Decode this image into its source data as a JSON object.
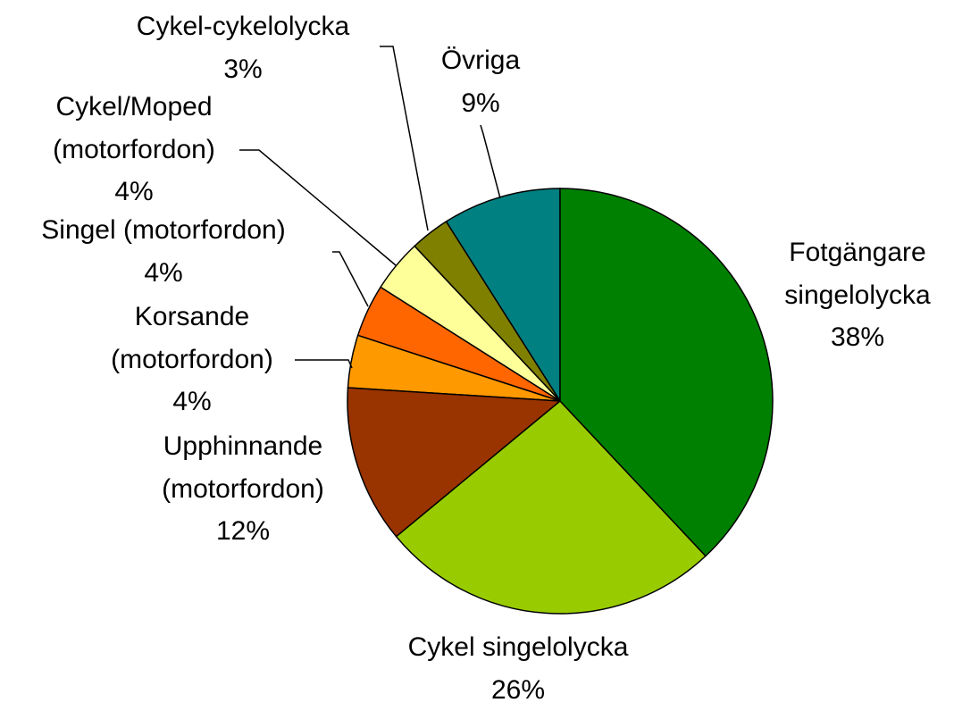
{
  "chart_data": {
    "type": "pie",
    "categories": [
      "Fotgängare singelolycka",
      "Cykel singelolycka",
      "Upphinnande (motorfordon)",
      "Korsande (motorfordon)",
      "Singel (motorfordon)",
      "Cykel/Moped (motorfordon)",
      "Cykel-cykelolycka",
      "Övriga"
    ],
    "values": [
      38,
      26,
      12,
      4,
      4,
      4,
      3,
      9
    ],
    "value_labels": [
      "38%",
      "26%",
      "12%",
      "4%",
      "4%",
      "4%",
      "3%",
      "9%"
    ],
    "colors": [
      "#008000",
      "#99cc00",
      "#993300",
      "#ff9900",
      "#ff6600",
      "#ffff99",
      "#808000",
      "#008080"
    ]
  }
}
